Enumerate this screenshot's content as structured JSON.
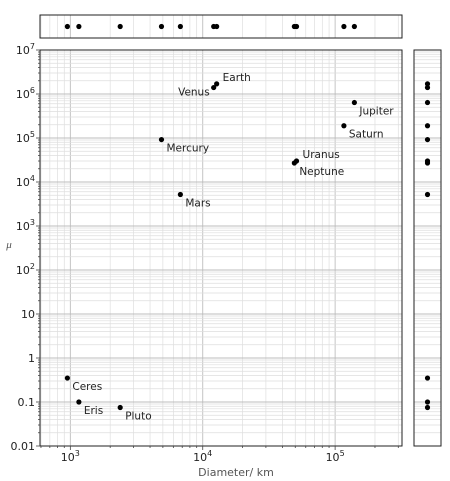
{
  "chart_data": {
    "type": "scatter",
    "title": "",
    "xlabel": "Diameter/ km",
    "ylabel": "μ",
    "x_scale": "log",
    "y_scale": "log",
    "xlim": [
      590,
      320000
    ],
    "ylim": [
      0.01,
      10000000
    ],
    "grid": true,
    "marginal_plots": [
      "top: x distribution",
      "right: y distribution"
    ],
    "x_ticks": [
      {
        "value": 1000,
        "mantissa": "10",
        "exp": "3"
      },
      {
        "value": 10000,
        "mantissa": "10",
        "exp": "4"
      },
      {
        "value": 100000,
        "mantissa": "10",
        "exp": "5"
      }
    ],
    "y_ticks": [
      {
        "value": 0.01,
        "label": "0.01"
      },
      {
        "value": 0.1,
        "label": "0.1"
      },
      {
        "value": 1,
        "label": "1"
      },
      {
        "value": 10,
        "label": "10"
      },
      {
        "value": 100,
        "mantissa": "10",
        "exp": "2"
      },
      {
        "value": 1000,
        "mantissa": "10",
        "exp": "3"
      },
      {
        "value": 10000,
        "mantissa": "10",
        "exp": "4"
      },
      {
        "value": 100000,
        "mantissa": "10",
        "exp": "5"
      },
      {
        "value": 1000000,
        "mantissa": "10",
        "exp": "6"
      },
      {
        "value": 10000000,
        "mantissa": "10",
        "exp": "7"
      }
    ],
    "points": [
      {
        "name": "Ceres",
        "x": 950,
        "y": 0.35,
        "label_pos": "below-right"
      },
      {
        "name": "Eris",
        "x": 1160,
        "y": 0.1,
        "label_pos": "below-right"
      },
      {
        "name": "Pluto",
        "x": 2380,
        "y": 0.075,
        "label_pos": "below-right"
      },
      {
        "name": "Mercury",
        "x": 4880,
        "y": 92000,
        "label_pos": "below-right"
      },
      {
        "name": "Mars",
        "x": 6780,
        "y": 5200,
        "label_pos": "below-right"
      },
      {
        "name": "Venus",
        "x": 12100,
        "y": 1400000,
        "label_pos": "below-left"
      },
      {
        "name": "Earth",
        "x": 12740,
        "y": 1700000,
        "label_pos": "above-right"
      },
      {
        "name": "Neptune",
        "x": 49200,
        "y": 27000,
        "label_pos": "below-right"
      },
      {
        "name": "Uranus",
        "x": 51100,
        "y": 30000,
        "label_pos": "above-right"
      },
      {
        "name": "Saturn",
        "x": 116500,
        "y": 190000,
        "label_pos": "below-right"
      },
      {
        "name": "Jupiter",
        "x": 139800,
        "y": 640000,
        "label_pos": "below-right"
      }
    ]
  }
}
